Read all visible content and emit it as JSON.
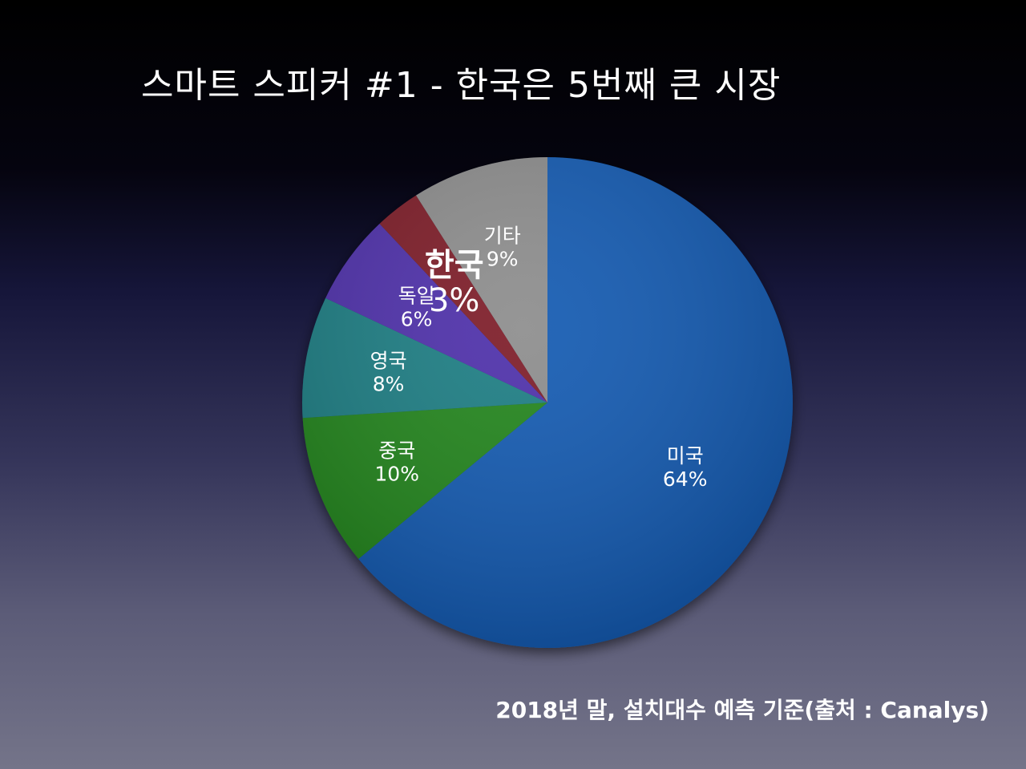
{
  "title": "스마트 스피커 #1 - 한국은 5번째 큰 시장",
  "footnote": "2018년 말, 설치대수 예측 기준(출처 : Canalys)",
  "chart_data": {
    "type": "pie",
    "title": "스마트 스피커 #1 - 한국은 5번째 큰 시장",
    "slices": [
      {
        "name": "미국",
        "value": 64,
        "label": "64%",
        "color": "#0a56b0",
        "emphasis": false
      },
      {
        "name": "중국",
        "value": 10,
        "label": "10%",
        "color": "#1e8213",
        "emphasis": false
      },
      {
        "name": "영국",
        "value": 8,
        "label": "8%",
        "color": "#137a80",
        "emphasis": false
      },
      {
        "name": "독일",
        "value": 6,
        "label": "6%",
        "color": "#4a29a8",
        "emphasis": false
      },
      {
        "name": "한국",
        "value": 3,
        "label": "3%",
        "color": "#7a1422",
        "emphasis": true
      },
      {
        "name": "기타",
        "value": 9,
        "label": "9%",
        "color": "#8a8a8a",
        "emphasis": false
      }
    ]
  }
}
